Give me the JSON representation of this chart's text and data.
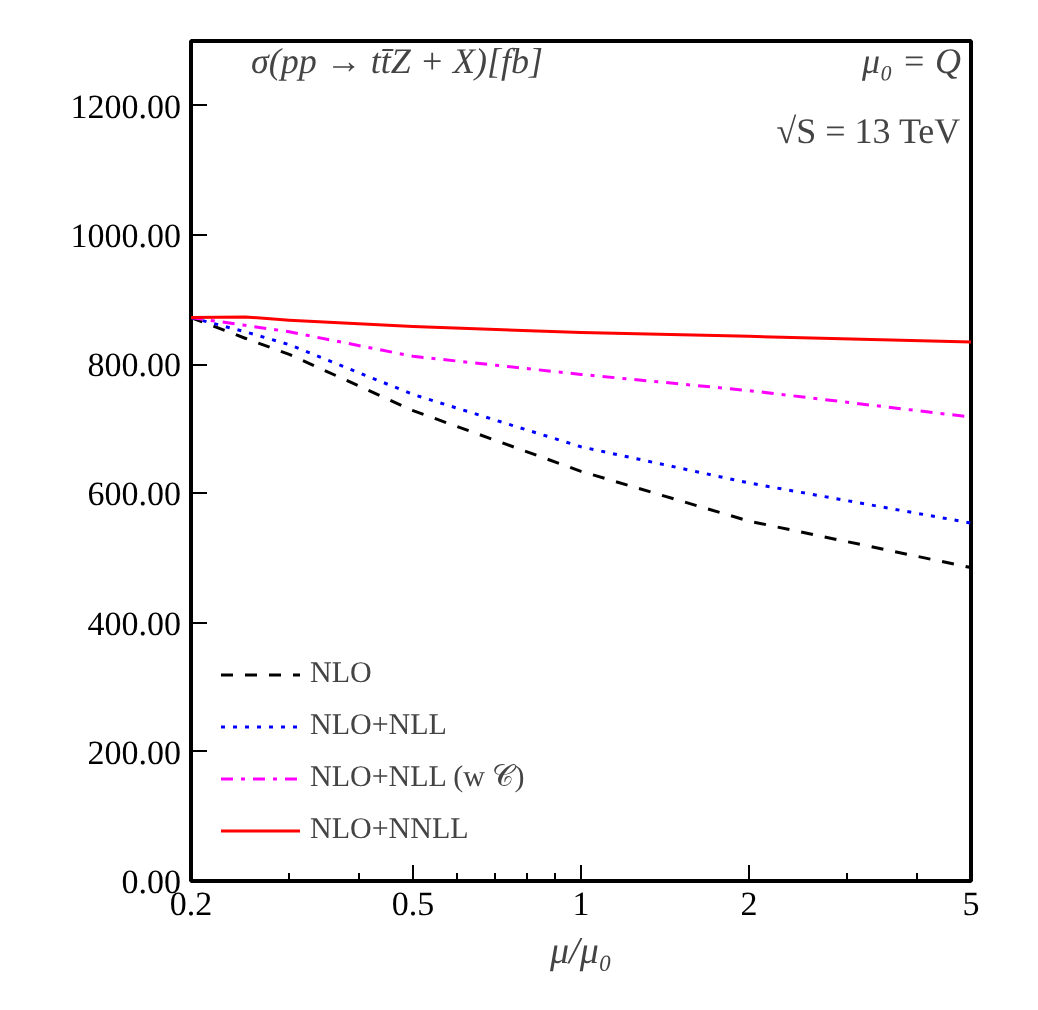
{
  "chart_data": {
    "type": "line",
    "xlabel": "μ/μ₀",
    "log": "x",
    "xlim": [
      0.2,
      5
    ],
    "xticks": [
      0.2,
      0.5,
      1,
      2,
      5
    ],
    "ylim": [
      0,
      1300
    ],
    "yticks": [
      {
        "value": 0,
        "label": "0.00"
      },
      {
        "value": 200,
        "label": "200.00"
      },
      {
        "value": 400,
        "label": "400.00"
      },
      {
        "value": 600,
        "label": "600.00"
      },
      {
        "value": 800,
        "label": "800.00"
      },
      {
        "value": 1000,
        "label": "1000.00"
      },
      {
        "value": 1200,
        "label": "1200.00"
      }
    ],
    "x": [
      0.2,
      0.25,
      0.3,
      0.5,
      1,
      2,
      5
    ],
    "series": [
      {
        "name": "NLO",
        "color": "#000000",
        "line_style": "dashed",
        "values": [
          872,
          840,
          815,
          728,
          634,
          557,
          485
        ]
      },
      {
        "name": "NLO+NLL",
        "color": "#0000ff",
        "line_style": "dotted",
        "values": [
          872,
          850,
          830,
          753,
          672,
          616,
          554
        ]
      },
      {
        "name": "NLO+NLL (w 𝒞)",
        "color": "#ff00ff",
        "line_style": "dashdot",
        "values": [
          872,
          860,
          850,
          812,
          784,
          759,
          718
        ]
      },
      {
        "name": "NLO+NNLL",
        "color": "#ff0000",
        "line_style": "solid",
        "values": [
          872,
          873,
          868,
          858,
          849,
          843,
          834
        ]
      }
    ],
    "annotations": [
      "σ(pp → tt̄Z + X)[fb]",
      "μ₀ = Q",
      "√S = 13 TeV"
    ],
    "legend": "bottom left",
    "grid": false
  }
}
